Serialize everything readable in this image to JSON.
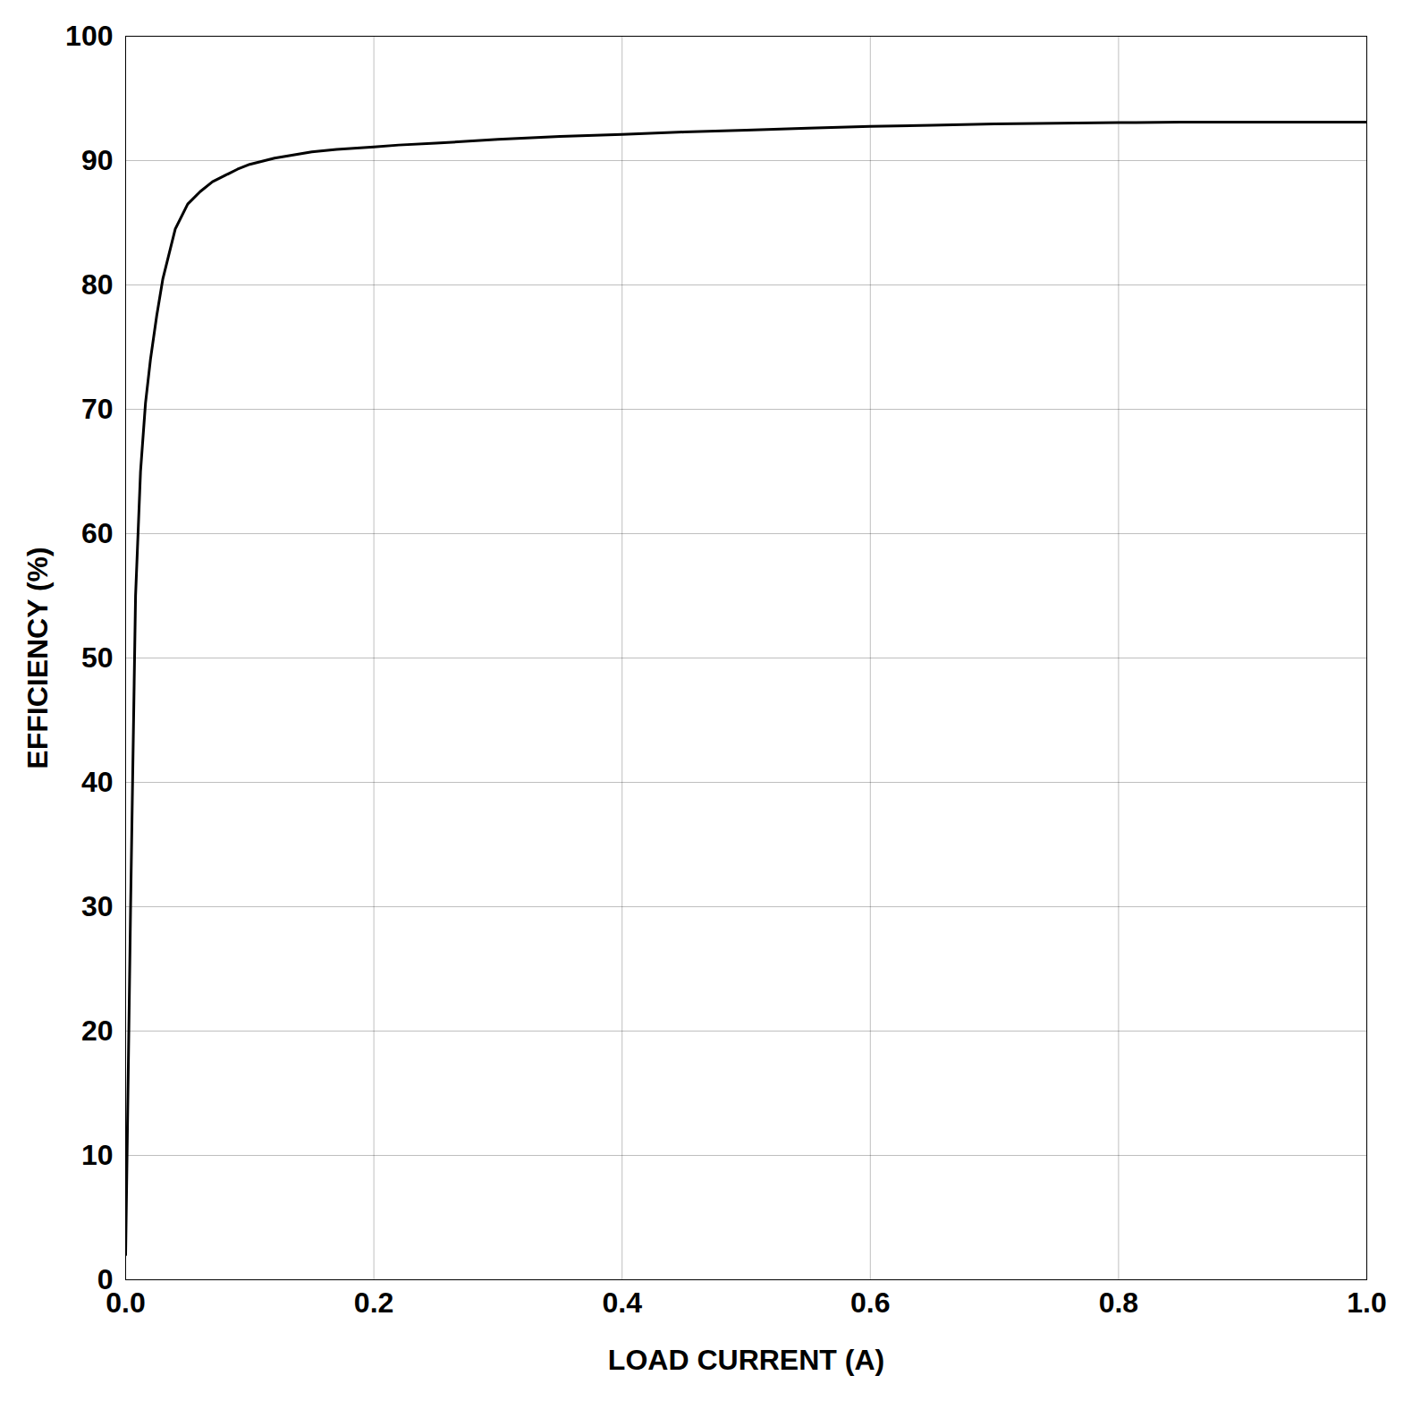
{
  "chart_data": {
    "type": "line",
    "xlabel": "LOAD CURRENT (A)",
    "ylabel": "EFFICIENCY (%)",
    "x": [
      0.0,
      0.004,
      0.008,
      0.012,
      0.016,
      0.02,
      0.025,
      0.03,
      0.04,
      0.05,
      0.06,
      0.07,
      0.08,
      0.09,
      0.1,
      0.12,
      0.15,
      0.17,
      0.2,
      0.22,
      0.25,
      0.3,
      0.35,
      0.4,
      0.45,
      0.5,
      0.55,
      0.6,
      0.65,
      0.7,
      0.75,
      0.8,
      0.85,
      0.9,
      0.95,
      1.0
    ],
    "values": [
      2.0,
      30.0,
      55.0,
      65.0,
      70.5,
      74.0,
      77.5,
      80.5,
      84.5,
      86.5,
      87.5,
      88.3,
      88.8,
      89.3,
      89.7,
      90.2,
      90.7,
      90.9,
      91.1,
      91.25,
      91.4,
      91.7,
      91.95,
      92.1,
      92.3,
      92.45,
      92.6,
      92.75,
      92.85,
      92.95,
      93.0,
      93.05,
      93.1,
      93.1,
      93.1,
      93.1
    ],
    "color": "#000000",
    "xlim": [
      0.0,
      1.0
    ],
    "ylim": [
      0,
      100
    ],
    "xticks": [
      {
        "value": 0,
        "label": "0.0"
      },
      0.2,
      0.4,
      0.6,
      0.8,
      {
        "value": 1,
        "label": "1.0"
      }
    ],
    "yticks": [
      0,
      10,
      20,
      30,
      40,
      50,
      60,
      70,
      80,
      90,
      100
    ],
    "grid": true
  }
}
